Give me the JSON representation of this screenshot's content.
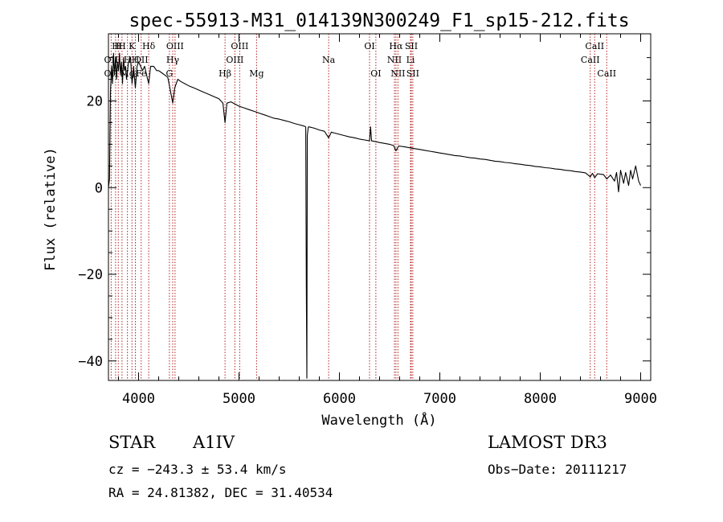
{
  "chart_data": {
    "type": "line",
    "title": "spec-55913-M31_014139N300249_F1_sp15-212.fits",
    "xlabel": "Wavelength (Å)",
    "ylabel": "Flux (relative)",
    "xlim": [
      3700,
      9100
    ],
    "ylim": [
      -44.5,
      35.5
    ],
    "xticks": [
      4000,
      5000,
      6000,
      7000,
      8000,
      9000
    ],
    "yticks": [
      -40,
      -20,
      0,
      20
    ],
    "series": [
      {
        "name": "flux",
        "points": [
          [
            3700,
            0
          ],
          [
            3710,
            2
          ],
          [
            3720,
            22
          ],
          [
            3730,
            28
          ],
          [
            3740,
            24
          ],
          [
            3750,
            31
          ],
          [
            3760,
            26
          ],
          [
            3770,
            30
          ],
          [
            3780,
            25
          ],
          [
            3790,
            29
          ],
          [
            3800,
            27
          ],
          [
            3810,
            31
          ],
          [
            3820,
            26
          ],
          [
            3830,
            29
          ],
          [
            3840,
            24
          ],
          [
            3850,
            30
          ],
          [
            3860,
            27
          ],
          [
            3870,
            28
          ],
          [
            3880,
            25
          ],
          [
            3890,
            27
          ],
          [
            3900,
            29
          ],
          [
            3920,
            30
          ],
          [
            3935,
            24
          ],
          [
            3950,
            28
          ],
          [
            3968,
            23
          ],
          [
            3985,
            28
          ],
          [
            4000,
            29
          ],
          [
            4020,
            28
          ],
          [
            4040,
            27
          ],
          [
            4060,
            28
          ],
          [
            4080,
            26
          ],
          [
            4101,
            24
          ],
          [
            4120,
            28
          ],
          [
            4150,
            28
          ],
          [
            4180,
            27
          ],
          [
            4200,
            27
          ],
          [
            4230,
            26.5
          ],
          [
            4260,
            26
          ],
          [
            4290,
            25.5
          ],
          [
            4320,
            22
          ],
          [
            4340,
            19.5
          ],
          [
            4360,
            23
          ],
          [
            4390,
            25
          ],
          [
            4420,
            24.5
          ],
          [
            4460,
            24
          ],
          [
            4500,
            23.5
          ],
          [
            4550,
            23
          ],
          [
            4600,
            22.5
          ],
          [
            4650,
            22
          ],
          [
            4700,
            21.5
          ],
          [
            4750,
            21
          ],
          [
            4800,
            20.5
          ],
          [
            4840,
            19.5
          ],
          [
            4861,
            15
          ],
          [
            4880,
            19.5
          ],
          [
            4920,
            19.8
          ],
          [
            4960,
            19.3
          ],
          [
            5000,
            18.8
          ],
          [
            5050,
            18.4
          ],
          [
            5100,
            18
          ],
          [
            5150,
            17.6
          ],
          [
            5200,
            17.2
          ],
          [
            5250,
            16.8
          ],
          [
            5300,
            16.4
          ],
          [
            5350,
            16
          ],
          [
            5400,
            15.8
          ],
          [
            5450,
            15.5
          ],
          [
            5500,
            15.2
          ],
          [
            5550,
            14.8
          ],
          [
            5600,
            14.5
          ],
          [
            5650,
            14.2
          ],
          [
            5665,
            14
          ],
          [
            5670,
            -22
          ],
          [
            5676,
            -44
          ],
          [
            5680,
            12
          ],
          [
            5690,
            14
          ],
          [
            5700,
            14
          ],
          [
            5750,
            13.7
          ],
          [
            5800,
            13.3
          ],
          [
            5850,
            13
          ],
          [
            5893,
            11.5
          ],
          [
            5920,
            12.8
          ],
          [
            5950,
            12.6
          ],
          [
            6000,
            12.3
          ],
          [
            6050,
            12
          ],
          [
            6100,
            11.7
          ],
          [
            6150,
            11.5
          ],
          [
            6200,
            11.2
          ],
          [
            6250,
            11
          ],
          [
            6300,
            10.8
          ],
          [
            6310,
            14
          ],
          [
            6320,
            10.8
          ],
          [
            6360,
            10.6
          ],
          [
            6400,
            10.4
          ],
          [
            6450,
            10.2
          ],
          [
            6500,
            10
          ],
          [
            6540,
            9.7
          ],
          [
            6563,
            8.5
          ],
          [
            6590,
            9.6
          ],
          [
            6650,
            9.4
          ],
          [
            6700,
            9.2
          ],
          [
            6750,
            9
          ],
          [
            6800,
            8.8
          ],
          [
            6850,
            8.6
          ],
          [
            6900,
            8.4
          ],
          [
            6950,
            8.2
          ],
          [
            7000,
            8
          ],
          [
            7050,
            7.8
          ],
          [
            7100,
            7.6
          ],
          [
            7150,
            7.4
          ],
          [
            7200,
            7.3
          ],
          [
            7250,
            7.1
          ],
          [
            7300,
            6.9
          ],
          [
            7350,
            6.8
          ],
          [
            7400,
            6.6
          ],
          [
            7450,
            6.5
          ],
          [
            7500,
            6.3
          ],
          [
            7550,
            6.1
          ],
          [
            7600,
            6
          ],
          [
            7650,
            5.8
          ],
          [
            7700,
            5.7
          ],
          [
            7750,
            5.5
          ],
          [
            7800,
            5.4
          ],
          [
            7850,
            5.2
          ],
          [
            7900,
            5.1
          ],
          [
            7950,
            4.9
          ],
          [
            8000,
            4.8
          ],
          [
            8050,
            4.6
          ],
          [
            8100,
            4.5
          ],
          [
            8150,
            4.3
          ],
          [
            8200,
            4.2
          ],
          [
            8250,
            4
          ],
          [
            8300,
            3.9
          ],
          [
            8350,
            3.7
          ],
          [
            8400,
            3.6
          ],
          [
            8450,
            3.4
          ],
          [
            8498,
            2.5
          ],
          [
            8520,
            3.3
          ],
          [
            8542,
            2.3
          ],
          [
            8570,
            3.2
          ],
          [
            8600,
            3.1
          ],
          [
            8630,
            3
          ],
          [
            8662,
            2
          ],
          [
            8700,
            2.9
          ],
          [
            8740,
            1.5
          ],
          [
            8760,
            3.5
          ],
          [
            8780,
            -1
          ],
          [
            8800,
            4
          ],
          [
            8830,
            1
          ],
          [
            8850,
            3.5
          ],
          [
            8880,
            0.5
          ],
          [
            8900,
            4
          ],
          [
            8920,
            2
          ],
          [
            8950,
            5
          ],
          [
            8980,
            1.5
          ],
          [
            9000,
            0.5
          ]
        ]
      }
    ],
    "lines": [
      {
        "wl": 3727,
        "labels": [
          {
            "text": "OII",
            "row": 2
          },
          {
            "text": "OII",
            "row": 3
          }
        ]
      },
      {
        "wl": 3771,
        "labels": [
          {
            "text": "H",
            "row": 1
          }
        ]
      },
      {
        "wl": 3798,
        "labels": [
          {
            "text": "H",
            "row": 1
          }
        ]
      },
      {
        "wl": 3835,
        "labels": [
          {
            "text": "H",
            "row": 1
          }
        ]
      },
      {
        "wl": 3889,
        "labels": [
          {
            "text": "H",
            "row": 2
          },
          {
            "text": "Mg",
            "row": 3
          }
        ]
      },
      {
        "wl": 3934,
        "labels": [
          {
            "text": "K",
            "row": 1
          }
        ]
      },
      {
        "wl": 3968,
        "labels": [
          {
            "text": "H",
            "row": 2
          }
        ]
      },
      {
        "wl": 4026,
        "labels": [
          {
            "text": "OII",
            "row": 2
          },
          {
            "text": "Fe",
            "row": 3
          }
        ]
      },
      {
        "wl": 4101,
        "labels": [
          {
            "text": "Hδ",
            "row": 1
          }
        ]
      },
      {
        "wl": 4307,
        "labels": [
          {
            "text": "G",
            "row": 3
          }
        ]
      },
      {
        "wl": 4340,
        "labels": [
          {
            "text": "Hγ",
            "row": 2
          }
        ]
      },
      {
        "wl": 4363,
        "labels": [
          {
            "text": "OIII",
            "row": 1
          }
        ]
      },
      {
        "wl": 4861,
        "labels": [
          {
            "text": "Hβ",
            "row": 3
          }
        ]
      },
      {
        "wl": 4959,
        "labels": [
          {
            "text": "OIII",
            "row": 2
          }
        ]
      },
      {
        "wl": 5007,
        "labels": [
          {
            "text": "OIII",
            "row": 1
          }
        ]
      },
      {
        "wl": 5175,
        "labels": [
          {
            "text": "Mg",
            "row": 3
          }
        ]
      },
      {
        "wl": 5893,
        "labels": [
          {
            "text": "Na",
            "row": 2
          }
        ]
      },
      {
        "wl": 6300,
        "labels": [
          {
            "text": "OI",
            "row": 1
          }
        ]
      },
      {
        "wl": 6363,
        "labels": [
          {
            "text": "OI",
            "row": 3
          }
        ]
      },
      {
        "wl": 6548,
        "labels": [
          {
            "text": "NII",
            "row": 2
          }
        ]
      },
      {
        "wl": 6563,
        "labels": [
          {
            "text": "Hα",
            "row": 1
          }
        ]
      },
      {
        "wl": 6583,
        "labels": [
          {
            "text": "NII",
            "row": 3
          }
        ]
      },
      {
        "wl": 6708,
        "labels": [
          {
            "text": "Li",
            "row": 2
          }
        ]
      },
      {
        "wl": 6716,
        "labels": [
          {
            "text": "SII",
            "row": 1
          }
        ]
      },
      {
        "wl": 6731,
        "labels": [
          {
            "text": "SII",
            "row": 3
          }
        ]
      },
      {
        "wl": 8498,
        "labels": [
          {
            "text": "CaII",
            "row": 2
          }
        ]
      },
      {
        "wl": 8542,
        "labels": [
          {
            "text": "CaII",
            "row": 1
          }
        ]
      },
      {
        "wl": 8662,
        "labels": [
          {
            "text": "CaII",
            "row": 3
          }
        ]
      }
    ]
  },
  "info": {
    "object_class": "STAR",
    "subclass": "A1IV",
    "survey": "LAMOST DR3",
    "cz": "cz = −243.3 ± 53.4 km/s",
    "obs_date": "Obs−Date: 20111217",
    "coords": "RA =  24.81382, DEC =  31.40534"
  },
  "colors": {
    "spectrum": "#000000",
    "line_marker": "#b22222",
    "axis": "#000000",
    "background": "#ffffff"
  }
}
